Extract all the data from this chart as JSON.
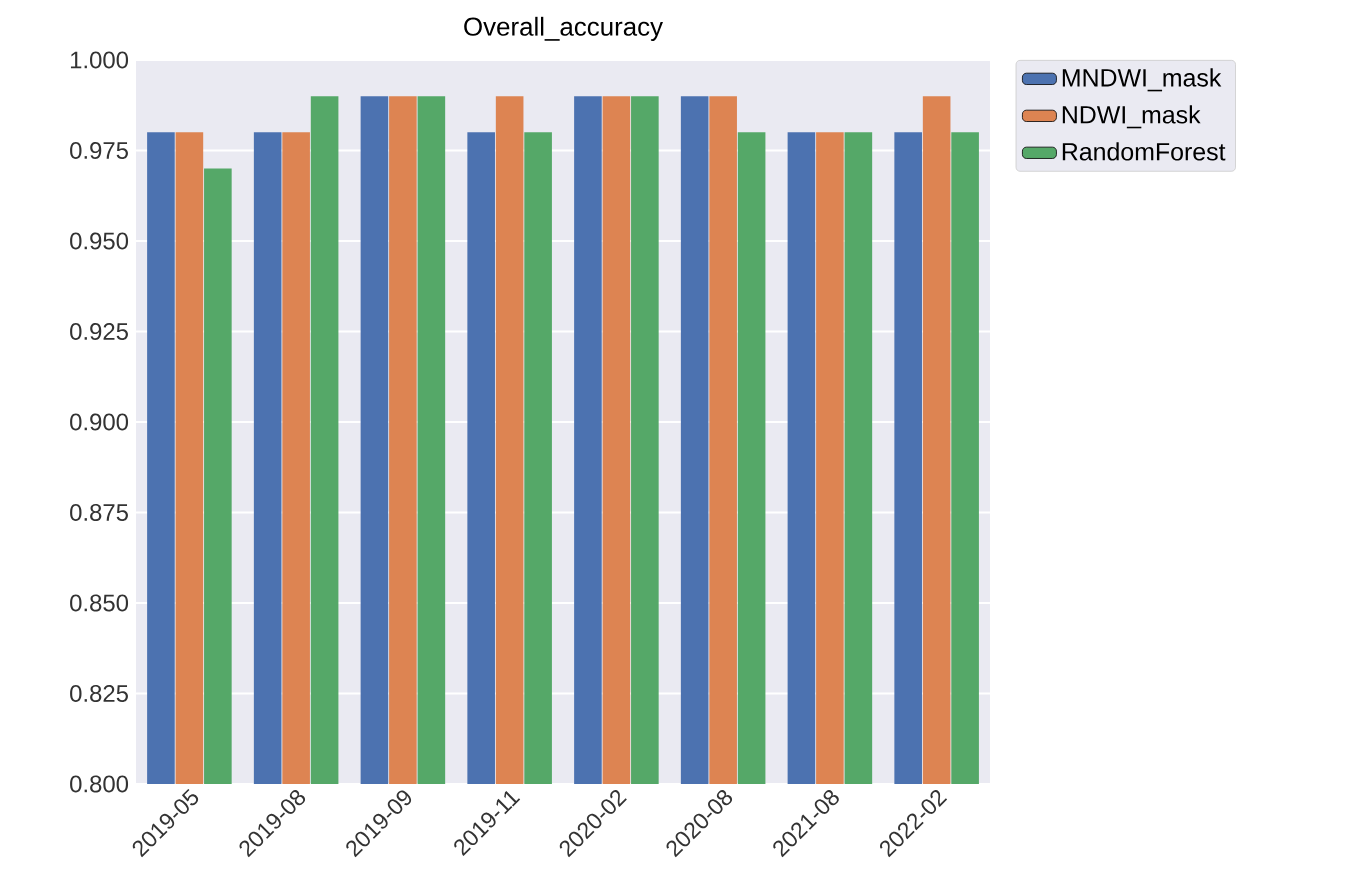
{
  "chart_data": {
    "type": "bar",
    "title": "Overall_accuracy",
    "categories": [
      "2019-05",
      "2019-08",
      "2019-09",
      "2019-11",
      "2020-02",
      "2020-08",
      "2021-08",
      "2022-02"
    ],
    "series": [
      {
        "name": "MNDWI_mask",
        "color": "#4c72b0",
        "values": [
          0.98,
          0.98,
          0.99,
          0.98,
          0.99,
          0.99,
          0.98,
          0.98
        ]
      },
      {
        "name": "NDWI_mask",
        "color": "#dd8452",
        "values": [
          0.98,
          0.98,
          0.99,
          0.99,
          0.99,
          0.99,
          0.98,
          0.99
        ]
      },
      {
        "name": "RandomForest",
        "color": "#55a868",
        "values": [
          0.97,
          0.99,
          0.99,
          0.98,
          0.99,
          0.98,
          0.98,
          0.98
        ]
      }
    ],
    "ylim": [
      0.8,
      1.0
    ],
    "yticks": [
      {
        "value": 0.8,
        "label": "0.800"
      },
      {
        "value": 0.825,
        "label": "0.825"
      },
      {
        "value": 0.85,
        "label": "0.850"
      },
      {
        "value": 0.875,
        "label": "0.875"
      },
      {
        "value": 0.9,
        "label": "0.900"
      },
      {
        "value": 0.925,
        "label": "0.925"
      },
      {
        "value": 0.95,
        "label": "0.950"
      },
      {
        "value": 0.975,
        "label": "0.975"
      },
      {
        "value": 1.0,
        "label": "1.000"
      }
    ],
    "grid": "y",
    "legend": "top right"
  }
}
